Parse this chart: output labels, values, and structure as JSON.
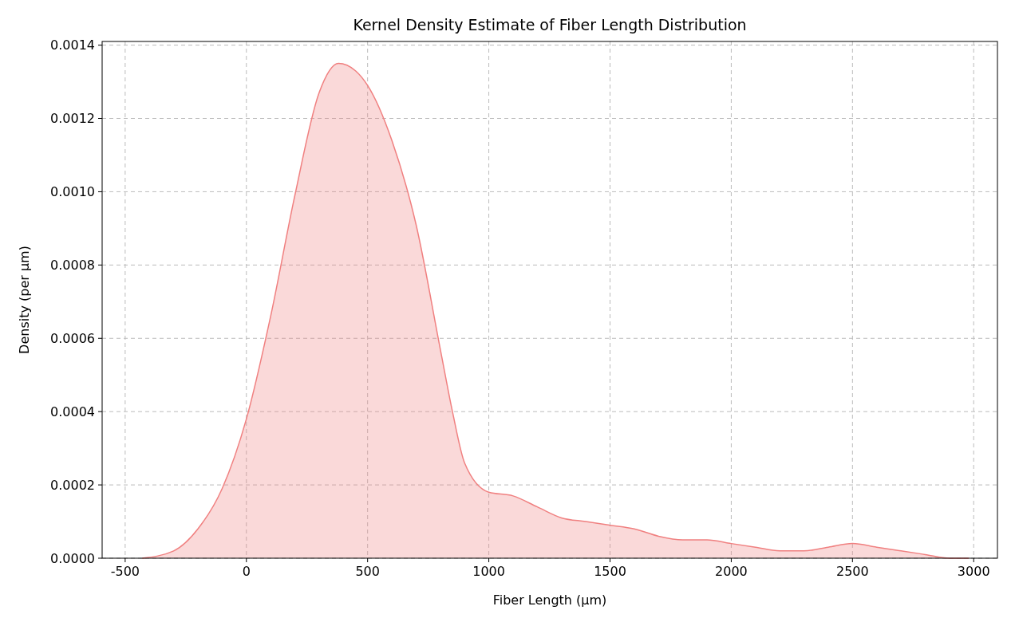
{
  "chart_data": {
    "type": "area",
    "title": "Kernel Density Estimate of Fiber Length Distribution",
    "xlabel": "Fiber Length (µm)",
    "ylabel": "Density (per µm)",
    "x": [
      -430,
      -300,
      -200,
      -100,
      0,
      100,
      200,
      300,
      380,
      450,
      500,
      600,
      700,
      800,
      850,
      900,
      1000,
      1100,
      1200,
      1300,
      1400,
      1500,
      1600,
      1700,
      1800,
      1900,
      2000,
      2100,
      2200,
      2300,
      2400,
      2500,
      2600,
      2700,
      2800,
      2900,
      2980
    ],
    "series": [
      {
        "color": "#f08080",
        "values": [
          0,
          2e-05,
          8e-05,
          0.00019,
          0.00038,
          0.00066,
          0.00099,
          0.00127,
          0.00135,
          0.00133,
          0.00129,
          0.00114,
          0.00091,
          0.00057,
          0.0004,
          0.00026,
          0.00018,
          0.00017,
          0.00014,
          0.00011,
          0.0001,
          9e-05,
          8e-05,
          6e-05,
          5e-05,
          5e-05,
          4e-05,
          3e-05,
          2e-05,
          2e-05,
          3e-05,
          4e-05,
          3e-05,
          2e-05,
          1e-05,
          0,
          0
        ]
      }
    ],
    "xlim": [
      -595,
      3098
    ],
    "ylim": [
      0,
      0.00141
    ],
    "xticks": [
      -500,
      0,
      500,
      1000,
      1500,
      2000,
      2500,
      3000
    ],
    "yticks": [
      {
        "value": 0,
        "label": "0.0000"
      },
      {
        "value": 0.0002,
        "label": "0.0002"
      },
      {
        "value": 0.0004,
        "label": "0.0004"
      },
      {
        "value": 0.0006,
        "label": "0.0006"
      },
      {
        "value": 0.0008,
        "label": "0.0008"
      },
      {
        "value": 0.001,
        "label": "0.0010"
      },
      {
        "value": 0.0012,
        "label": "0.0012"
      },
      {
        "value": 0.0014,
        "label": "0.0014"
      }
    ],
    "grid": true
  }
}
